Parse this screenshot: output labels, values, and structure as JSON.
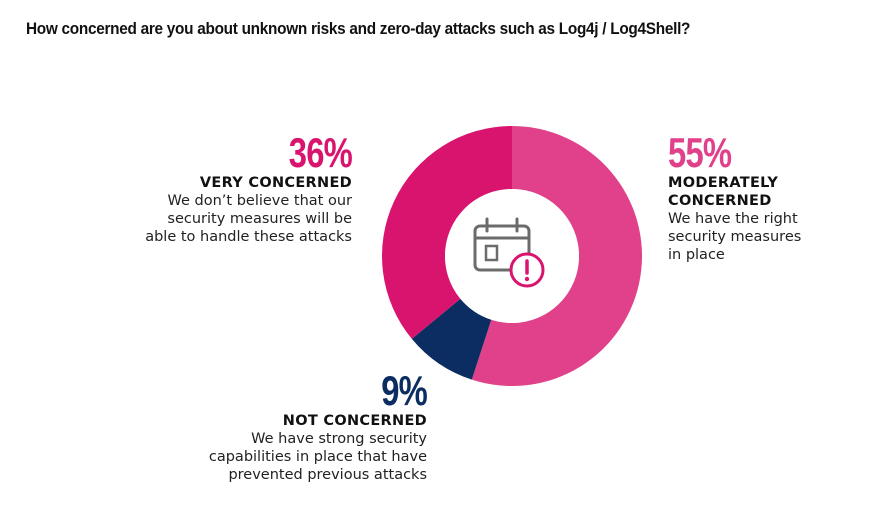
{
  "title": "How concerned are you about unknown risks and zero-day attacks such as Log4j / Log4Shell?",
  "chart_data": {
    "type": "pie",
    "title": "How concerned are you about unknown risks and zero-day attacks such as Log4j / Log4Shell?",
    "donut": true,
    "slices": [
      {
        "key": "moderate",
        "percent_label": "55%",
        "value": 55,
        "label": "MODERATELY CONCERNED",
        "description": "We have the right security measures in place",
        "color": "#e0418a"
      },
      {
        "key": "not",
        "percent_label": "9%",
        "value": 9,
        "label": "NOT CONCERNED",
        "description": "We have strong security capabilities in place that have prevented previous attacks",
        "color": "#0c2d62"
      },
      {
        "key": "very",
        "percent_label": "36%",
        "value": 36,
        "label": "VERY CONCERNED",
        "description": "We don’t believe that our security measures will be able to handle these attacks",
        "color": "#d9146e"
      }
    ]
  },
  "callouts": {
    "very": {
      "pct": "36%",
      "label": "VERY CONCERNED",
      "desc_lines": [
        "We don’t believe that our",
        "security measures will be",
        "able to handle these attacks"
      ],
      "color": "#d9146e"
    },
    "moderate": {
      "pct": "55%",
      "label_lines": [
        "MODERATELY",
        "CONCERNED"
      ],
      "desc_lines": [
        "We have the right",
        "security measures",
        "in place"
      ],
      "color": "#e0418a"
    },
    "not": {
      "pct": "9%",
      "label": "NOT CONCERNED",
      "desc_lines": [
        "We have strong security",
        "capabilities in place that have",
        "prevented previous attacks"
      ],
      "color": "#0c2d62"
    }
  },
  "icon": {
    "name": "calendar-alert-icon",
    "stroke_color": "#6b6b6b",
    "alert_color": "#d9146e"
  }
}
